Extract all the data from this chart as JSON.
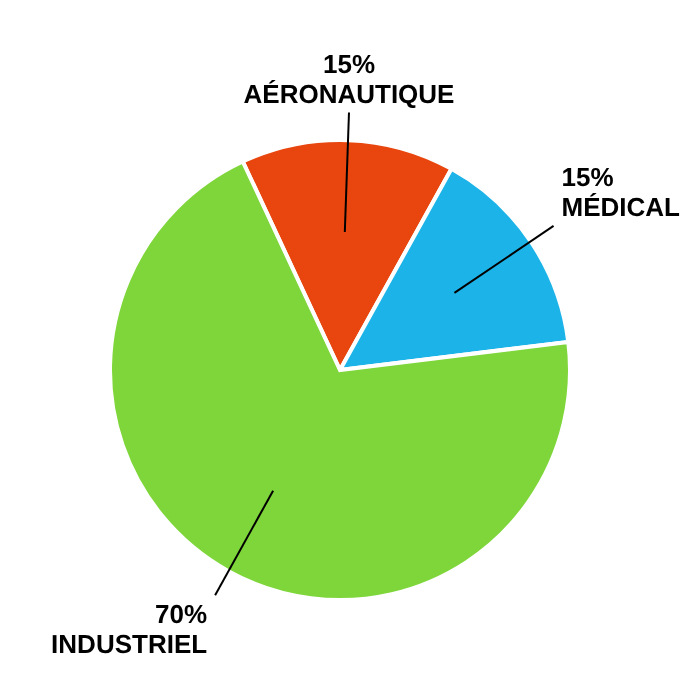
{
  "chart_data": {
    "type": "pie",
    "categories": [
      "AÉRONAUTIQUE",
      "MÉDICAL",
      "INDUSTRIEL"
    ],
    "values": [
      15,
      15,
      70
    ],
    "colors": [
      "#e8460e",
      "#1cb4e8",
      "#7ed63a"
    ],
    "value_labels": [
      "15%",
      "15%",
      "70%"
    ]
  }
}
